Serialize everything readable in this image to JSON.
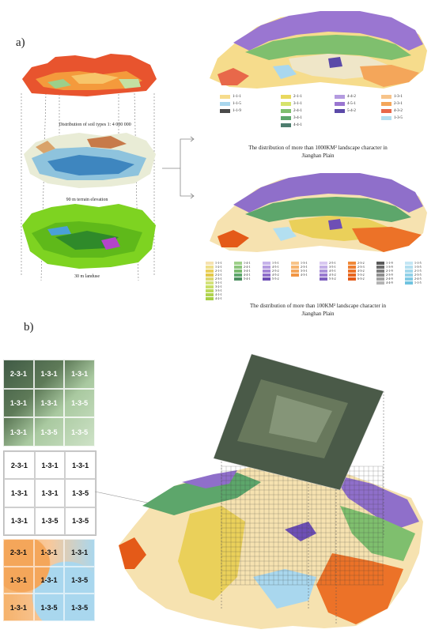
{
  "panel_a": {
    "label": "a)",
    "layers": [
      {
        "caption": "Distribution of soil types 1: 4 000 000"
      },
      {
        "caption": "90 m terrain elevation"
      },
      {
        "caption": "30 m landuse"
      }
    ],
    "map1_title_line1": "The distribution of more than 1000KM² landscape character in",
    "map1_title_line2": "Jianghan Plain",
    "map2_title_line1": "The distribution of more than 100KM² landscape character in",
    "map2_title_line2": "Jianghan Plain",
    "legend1": [
      {
        "code": "1-1-1",
        "color": "#f6dc8c"
      },
      {
        "code": "2-1-1",
        "color": "#e9d85e"
      },
      {
        "code": "4-4-2",
        "color": "#b49be0"
      },
      {
        "code": "1-3-1",
        "color": "#f7c48a"
      },
      {
        "code": "1-1-5",
        "color": "#a9d7ee"
      },
      {
        "code": "3-1-1",
        "color": "#d6e36b"
      },
      {
        "code": "4-5-1",
        "color": "#9a76d1"
      },
      {
        "code": "2-3-1",
        "color": "#f4a65a"
      },
      {
        "code": "1-1-9",
        "color": "#4a4a4a"
      },
      {
        "code": "2-4-1",
        "color": "#7fbf6e"
      },
      {
        "code": "5-4-2",
        "color": "#5b4aa8"
      },
      {
        "code": "4-3-2",
        "color": "#e8684a"
      },
      {
        "code": "3-4-1",
        "color": "#5da66b"
      },
      {
        "code": "1-3-5",
        "color": "#b3dff0"
      },
      {
        "code": "4-4-1",
        "color": "#4d7d6e"
      }
    ],
    "legend2": [
      {
        "code": "1-1-1",
        "color": "#f6e2b0"
      },
      {
        "code": "1-2-1",
        "color": "#efe08a"
      },
      {
        "code": "2-1-1",
        "color": "#ead05a"
      },
      {
        "code": "2-2-1",
        "color": "#e4c94a"
      },
      {
        "code": "2-3-1",
        "color": "#dcd870"
      },
      {
        "code": "3-1-1",
        "color": "#d3e27a"
      },
      {
        "code": "3-2-1",
        "color": "#c9df66"
      },
      {
        "code": "3-3-1",
        "color": "#bcd95a"
      },
      {
        "code": "4-1-1",
        "color": "#b0d34f"
      },
      {
        "code": "4-2-1",
        "color": "#a6cf45"
      },
      {
        "code": "1-4-1",
        "color": "#9fd08a"
      },
      {
        "code": "2-4-1",
        "color": "#8cc57c"
      },
      {
        "code": "3-4-1",
        "color": "#79ba6e"
      },
      {
        "code": "4-4-1",
        "color": "#5da66b"
      },
      {
        "code": "5-4-1",
        "color": "#4d8f60"
      },
      {
        "code": "1-5-1",
        "color": "#c6b3ea"
      },
      {
        "code": "4-5-1",
        "color": "#b49be0"
      },
      {
        "code": "2-5-2",
        "color": "#a385d6"
      },
      {
        "code": "4-5-2",
        "color": "#8f6fca"
      },
      {
        "code": "5-5-2",
        "color": "#6e4fb5"
      },
      {
        "code": "1-3-1",
        "color": "#f7c48a"
      },
      {
        "code": "2-3-1",
        "color": "#f6b46e"
      },
      {
        "code": "3-3-1",
        "color": "#f4a65a"
      },
      {
        "code": "4-3-1",
        "color": "#f29644"
      },
      {
        "code": "2-5-1",
        "color": "#d8c8f0"
      },
      {
        "code": "3-5-1",
        "color": "#c3aee6"
      },
      {
        "code": "4-5-1",
        "color": "#ac93da"
      },
      {
        "code": "4-3-2",
        "color": "#9a7ad0"
      },
      {
        "code": "5-3-2",
        "color": "#7e5fbe"
      },
      {
        "code": "2-3-2",
        "color": "#f08a3a"
      },
      {
        "code": "2-3-3",
        "color": "#ee7e30"
      },
      {
        "code": "4-3-2",
        "color": "#ec7228"
      },
      {
        "code": "5-3-2",
        "color": "#e86620"
      },
      {
        "code": "6-3-2",
        "color": "#e45a18"
      },
      {
        "code": "1-1-9",
        "color": "#5a5a5a"
      },
      {
        "code": "1-3-9",
        "color": "#6c6c6c"
      },
      {
        "code": "2-1-9",
        "color": "#7e7e7e"
      },
      {
        "code": "2-3-9",
        "color": "#909090"
      },
      {
        "code": "2-4-9",
        "color": "#a2a2a2"
      },
      {
        "code": "4-4-9",
        "color": "#b4b4b4"
      },
      {
        "code": "1-1-5",
        "color": "#c4e6f4"
      },
      {
        "code": "1-3-5",
        "color": "#b3dff0"
      },
      {
        "code": "2-1-5",
        "color": "#a2d8ec"
      },
      {
        "code": "2-3-5",
        "color": "#91d1e8"
      },
      {
        "code": "2-4-5",
        "color": "#80cae4"
      },
      {
        "code": "1-1-5",
        "color": "#6fc3e0"
      }
    ]
  },
  "panel_b": {
    "label": "b)",
    "photo_grid": [
      "2-3-1",
      "1-3-1",
      "1-3-1",
      "1-3-1",
      "1-3-1",
      "1-3-5",
      "1-3-1",
      "1-3-5",
      "1-3-5"
    ],
    "code_grid": [
      "2-3-1",
      "1-3-1",
      "1-3-1",
      "1-3-1",
      "1-3-1",
      "1-3-5",
      "1-3-1",
      "1-3-5",
      "1-3-5"
    ],
    "map_grid": [
      "2-3-1",
      "1-3-1",
      "1-3-1",
      "1-3-1",
      "1-3-1",
      "1-3-5",
      "1-3-1",
      "1-3-5",
      "1-3-5"
    ]
  }
}
